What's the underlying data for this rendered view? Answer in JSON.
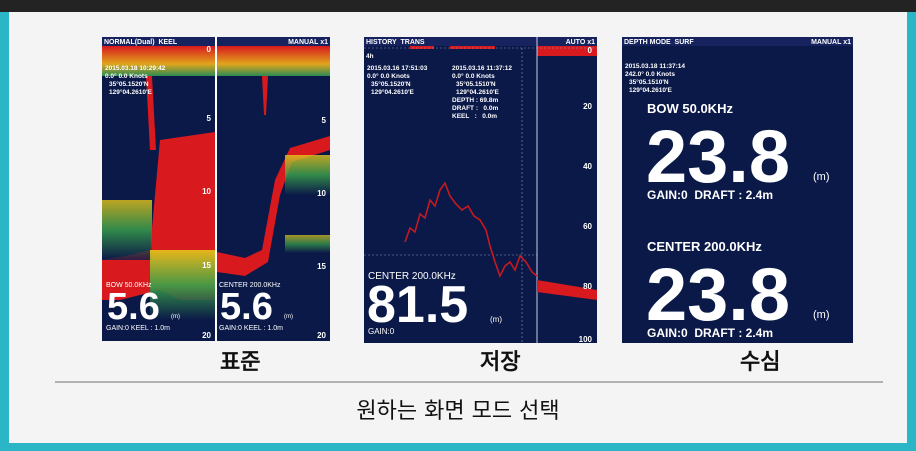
{
  "screens": [
    {
      "header": "NORMAL(Dual)  KEEL",
      "mode": "MANUAL x1",
      "info": [
        "2015.03.18 10:29:42",
        "0.0° 0.0 Knots",
        "35°05.1520'N",
        "129°04.2610'E"
      ],
      "scale_left": [
        "0",
        "5",
        "10",
        "15",
        "20"
      ],
      "scale_right": [
        "5",
        "10",
        "15",
        "20"
      ],
      "bow": {
        "freq": "BOW 50.0KHz",
        "depth": "5.6",
        "unit": "(m)",
        "status": "GAIN:0 KEEL : 1.0m"
      },
      "center": {
        "freq": "CENTER 200.0KHz",
        "depth": "5.6",
        "unit": "(m)",
        "status": "GAIN:0 KEEL : 1.0m"
      },
      "label": "표준"
    },
    {
      "header": "HISTORY  TRANS",
      "mode": "AUTO x1",
      "range": "4h",
      "info": [
        "2015.03.16 17:51:03",
        "0.0° 0.0 Knots",
        "35°05.1520'N",
        "129°04.2610'E"
      ],
      "info2": [
        "2015.03.16 11:37:12",
        "0.0° 0.0 Knots",
        "35°05.1510'N",
        "129°04.2610'E",
        "DEPTH : 69.8m",
        "DRAFT :   0.0m",
        "KEEL   :   0.0m"
      ],
      "scale": [
        "0",
        "20",
        "40",
        "60",
        "80",
        "100"
      ],
      "center": {
        "freq": "CENTER 200.0KHz",
        "depth": "81.5",
        "unit": "(m)",
        "status": "GAIN:0"
      },
      "label": "저장"
    },
    {
      "header": "DEPTH MODE  SURF",
      "mode": "MANUAL x1",
      "info": [
        "2015.03.18 11:37:14",
        "242.0° 0.0 Knots",
        "35°05.1510'N",
        "129°04.2610'E"
      ],
      "bow": {
        "freq": "BOW 50.0KHz",
        "depth": "23.8",
        "unit": "(m)",
        "status": "GAIN:0  DRAFT : 2.4m"
      },
      "center": {
        "freq": "CENTER 200.0KHz",
        "depth": "23.8",
        "unit": "(m)",
        "status": "GAIN:0  DRAFT : 2.4m"
      },
      "label": "수심"
    }
  ],
  "caption": "원하는 화면 모드 선택"
}
